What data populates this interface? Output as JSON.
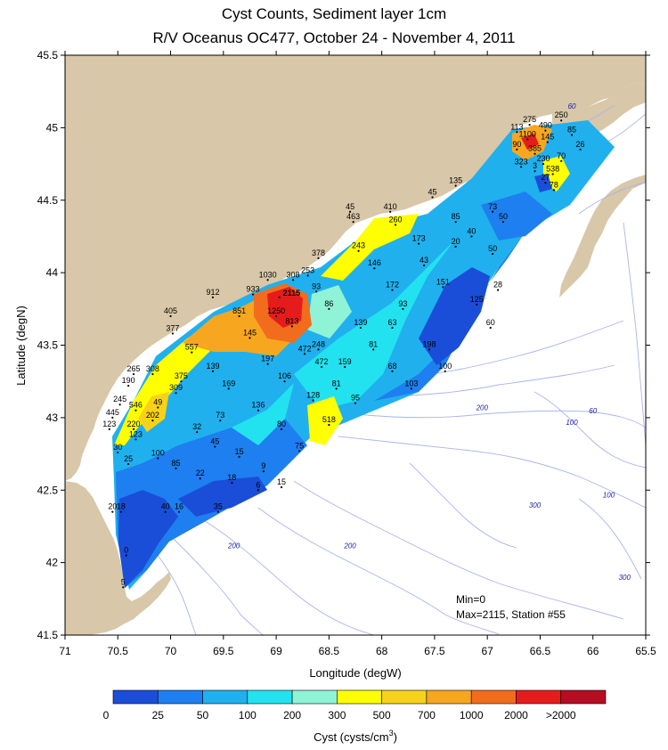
{
  "title": {
    "line1": "Cyst Counts, Sediment layer 1cm",
    "line2": "R/V Oceanus OC477, October 24 - November 4, 2011"
  },
  "axes": {
    "xlabel": "Longitude (degW)",
    "ylabel": "Latitude (degN)",
    "x_ticks": [
      "71",
      "70.5",
      "70",
      "69.5",
      "69",
      "68.5",
      "68",
      "67.5",
      "67",
      "66.5",
      "66",
      "65.5"
    ],
    "y_ticks": [
      "45.5",
      "45",
      "44.5",
      "44",
      "43.5",
      "43",
      "42.5",
      "42",
      "41.5"
    ],
    "xlim": [
      71,
      65.5
    ],
    "ylim": [
      41.5,
      45.5
    ]
  },
  "colors": {
    "land": "#d8c7a8",
    "sea": "#ffffff",
    "bathymetry": "#a9b4ec",
    "bins": [
      "#1a4ed8",
      "#1e7ff0",
      "#20b0ee",
      "#22e2f0",
      "#8ff3d6",
      "#ffff00",
      "#f8d21a",
      "#f7a61f",
      "#f26c1e",
      "#e51c1c",
      "#b50d22"
    ]
  },
  "colorbar": {
    "label": "Cyst (cysts/cm",
    "label_sup": "3",
    "label_close": ")",
    "ticks": [
      "0",
      "25",
      "50",
      "100",
      "200",
      "300",
      "500",
      "700",
      "1000",
      "2000",
      ">2000"
    ]
  },
  "annotations": {
    "min": "Min=0",
    "max": "Max=2115, Station #55",
    "peak": "2115"
  },
  "isobaths": [
    {
      "text": "60",
      "lon": 66.2,
      "lat": 45.13
    },
    {
      "text": "60",
      "lon": 66.0,
      "lat": 43.03
    },
    {
      "text": "100",
      "lon": 66.2,
      "lat": 42.95
    },
    {
      "text": "200",
      "lon": 67.05,
      "lat": 43.05
    },
    {
      "text": "100",
      "lon": 65.85,
      "lat": 42.45
    },
    {
      "text": "300",
      "lon": 66.55,
      "lat": 42.38
    },
    {
      "text": "200",
      "lon": 68.3,
      "lat": 42.1
    },
    {
      "text": "200",
      "lon": 69.4,
      "lat": 42.1
    },
    {
      "text": "300",
      "lon": 65.7,
      "lat": 41.88
    }
  ],
  "chart_data": {
    "type": "map",
    "title": "Cyst Counts, Sediment layer 1cm",
    "subtitle": "R/V Oceanus OC477, October 24 - November 4, 2011",
    "xlabel": "Longitude (degW)",
    "ylabel": "Latitude (degN)",
    "min": 0,
    "max": 2115,
    "max_station": 55,
    "stations": [
      {
        "lon": 66.45,
        "lat": 44.98,
        "value": 490
      },
      {
        "lon": 66.3,
        "lat": 45.05,
        "value": 250
      },
      {
        "lon": 66.6,
        "lat": 45.02,
        "value": 275
      },
      {
        "lon": 66.72,
        "lat": 44.97,
        "value": 113
      },
      {
        "lon": 66.62,
        "lat": 44.92,
        "value": 1100
      },
      {
        "lon": 66.72,
        "lat": 44.85,
        "value": 90
      },
      {
        "lon": 66.43,
        "lat": 44.9,
        "value": 145
      },
      {
        "lon": 66.2,
        "lat": 44.95,
        "value": 85
      },
      {
        "lon": 66.12,
        "lat": 44.85,
        "value": 26
      },
      {
        "lon": 66.55,
        "lat": 44.82,
        "value": 385
      },
      {
        "lon": 66.3,
        "lat": 44.77,
        "value": 70
      },
      {
        "lon": 66.47,
        "lat": 44.75,
        "value": 230
      },
      {
        "lon": 66.68,
        "lat": 44.73,
        "value": 323
      },
      {
        "lon": 66.55,
        "lat": 44.7,
        "value": 3
      },
      {
        "lon": 66.38,
        "lat": 44.68,
        "value": 538
      },
      {
        "lon": 66.45,
        "lat": 44.62,
        "value": 27
      },
      {
        "lon": 66.37,
        "lat": 44.57,
        "value": 78
      },
      {
        "lon": 67.3,
        "lat": 44.6,
        "value": 135
      },
      {
        "lon": 67.52,
        "lat": 44.52,
        "value": 45
      },
      {
        "lon": 67.92,
        "lat": 44.42,
        "value": 410
      },
      {
        "lon": 68.3,
        "lat": 44.42,
        "value": 45
      },
      {
        "lon": 68.27,
        "lat": 44.35,
        "value": 463
      },
      {
        "lon": 67.87,
        "lat": 44.33,
        "value": 260
      },
      {
        "lon": 66.95,
        "lat": 44.42,
        "value": 73
      },
      {
        "lon": 67.3,
        "lat": 44.35,
        "value": 85
      },
      {
        "lon": 66.85,
        "lat": 44.35,
        "value": 50
      },
      {
        "lon": 67.15,
        "lat": 44.25,
        "value": 40
      },
      {
        "lon": 67.65,
        "lat": 44.2,
        "value": 173
      },
      {
        "lon": 67.3,
        "lat": 44.18,
        "value": 20
      },
      {
        "lon": 68.22,
        "lat": 44.15,
        "value": 243
      },
      {
        "lon": 66.95,
        "lat": 44.13,
        "value": 50
      },
      {
        "lon": 68.6,
        "lat": 44.1,
        "value": 378
      },
      {
        "lon": 67.6,
        "lat": 44.05,
        "value": 43
      },
      {
        "lon": 68.07,
        "lat": 44.03,
        "value": 146
      },
      {
        "lon": 68.7,
        "lat": 43.98,
        "value": 253
      },
      {
        "lon": 69.08,
        "lat": 43.95,
        "value": 1030
      },
      {
        "lon": 68.84,
        "lat": 43.95,
        "value": 308
      },
      {
        "lon": 67.42,
        "lat": 43.9,
        "value": 151
      },
      {
        "lon": 66.9,
        "lat": 43.88,
        "value": 28
      },
      {
        "lon": 68.62,
        "lat": 43.87,
        "value": 93
      },
      {
        "lon": 67.9,
        "lat": 43.88,
        "value": 172
      },
      {
        "lon": 69.22,
        "lat": 43.85,
        "value": 933
      },
      {
        "lon": 69.6,
        "lat": 43.83,
        "value": 912
      },
      {
        "lon": 68.97,
        "lat": 43.83,
        "value": 2115
      },
      {
        "lon": 67.1,
        "lat": 43.78,
        "value": 125
      },
      {
        "lon": 68.5,
        "lat": 43.75,
        "value": 86
      },
      {
        "lon": 67.8,
        "lat": 43.75,
        "value": 93
      },
      {
        "lon": 69.35,
        "lat": 43.7,
        "value": 851
      },
      {
        "lon": 69.0,
        "lat": 43.7,
        "value": 1250
      },
      {
        "lon": 70.0,
        "lat": 43.7,
        "value": 405
      },
      {
        "lon": 68.85,
        "lat": 43.63,
        "value": 813
      },
      {
        "lon": 68.2,
        "lat": 43.62,
        "value": 139
      },
      {
        "lon": 67.9,
        "lat": 43.62,
        "value": 63
      },
      {
        "lon": 66.97,
        "lat": 43.62,
        "value": 60
      },
      {
        "lon": 69.98,
        "lat": 43.58,
        "value": 377
      },
      {
        "lon": 69.25,
        "lat": 43.55,
        "value": 145
      },
      {
        "lon": 68.6,
        "lat": 43.47,
        "value": 248
      },
      {
        "lon": 68.08,
        "lat": 43.47,
        "value": 81
      },
      {
        "lon": 67.55,
        "lat": 43.47,
        "value": 198
      },
      {
        "lon": 69.8,
        "lat": 43.45,
        "value": 557
      },
      {
        "lon": 68.73,
        "lat": 43.44,
        "value": 472
      },
      {
        "lon": 69.08,
        "lat": 43.37,
        "value": 197
      },
      {
        "lon": 68.35,
        "lat": 43.35,
        "value": 159
      },
      {
        "lon": 68.57,
        "lat": 43.35,
        "value": 472
      },
      {
        "lon": 67.9,
        "lat": 43.32,
        "value": 68
      },
      {
        "lon": 67.4,
        "lat": 43.32,
        "value": 100
      },
      {
        "lon": 70.35,
        "lat": 43.3,
        "value": 265
      },
      {
        "lon": 70.17,
        "lat": 43.3,
        "value": 308
      },
      {
        "lon": 69.6,
        "lat": 43.32,
        "value": 139
      },
      {
        "lon": 68.92,
        "lat": 43.25,
        "value": 106
      },
      {
        "lon": 69.9,
        "lat": 43.25,
        "value": 375
      },
      {
        "lon": 70.4,
        "lat": 43.22,
        "value": 190
      },
      {
        "lon": 69.45,
        "lat": 43.2,
        "value": 169
      },
      {
        "lon": 68.43,
        "lat": 43.2,
        "value": 81
      },
      {
        "lon": 67.72,
        "lat": 43.2,
        "value": 103
      },
      {
        "lon": 69.95,
        "lat": 43.17,
        "value": 309
      },
      {
        "lon": 68.65,
        "lat": 43.12,
        "value": 128
      },
      {
        "lon": 68.25,
        "lat": 43.1,
        "value": 95
      },
      {
        "lon": 70.48,
        "lat": 43.09,
        "value": 245
      },
      {
        "lon": 70.12,
        "lat": 43.07,
        "value": 49
      },
      {
        "lon": 70.33,
        "lat": 43.05,
        "value": 546
      },
      {
        "lon": 69.17,
        "lat": 43.05,
        "value": 136
      },
      {
        "lon": 70.55,
        "lat": 43.0,
        "value": 445
      },
      {
        "lon": 70.17,
        "lat": 42.98,
        "value": 202
      },
      {
        "lon": 69.53,
        "lat": 42.98,
        "value": 73
      },
      {
        "lon": 68.5,
        "lat": 42.95,
        "value": 518
      },
      {
        "lon": 70.58,
        "lat": 42.92,
        "value": 123
      },
      {
        "lon": 70.35,
        "lat": 42.92,
        "value": 220
      },
      {
        "lon": 68.95,
        "lat": 42.92,
        "value": 80
      },
      {
        "lon": 69.75,
        "lat": 42.9,
        "value": 32
      },
      {
        "lon": 70.33,
        "lat": 42.85,
        "value": 123
      },
      {
        "lon": 69.58,
        "lat": 42.8,
        "value": 45
      },
      {
        "lon": 68.78,
        "lat": 42.77,
        "value": 75
      },
      {
        "lon": 70.5,
        "lat": 42.76,
        "value": 30
      },
      {
        "lon": 69.35,
        "lat": 42.73,
        "value": 15
      },
      {
        "lon": 70.12,
        "lat": 42.72,
        "value": 100
      },
      {
        "lon": 70.4,
        "lat": 42.68,
        "value": 25
      },
      {
        "lon": 69.95,
        "lat": 42.65,
        "value": 85
      },
      {
        "lon": 69.12,
        "lat": 42.63,
        "value": 9
      },
      {
        "lon": 69.72,
        "lat": 42.58,
        "value": 22
      },
      {
        "lon": 69.42,
        "lat": 42.55,
        "value": 18
      },
      {
        "lon": 68.95,
        "lat": 42.52,
        "value": 15
      },
      {
        "lon": 69.17,
        "lat": 42.5,
        "value": 6
      },
      {
        "lon": 70.47,
        "lat": 42.35,
        "value": 18
      },
      {
        "lon": 70.55,
        "lat": 42.35,
        "value": 20
      },
      {
        "lon": 70.05,
        "lat": 42.35,
        "value": 40
      },
      {
        "lon": 69.92,
        "lat": 42.35,
        "value": 16
      },
      {
        "lon": 69.55,
        "lat": 42.35,
        "value": 35
      },
      {
        "lon": 70.42,
        "lat": 42.05,
        "value": 0
      },
      {
        "lon": 70.45,
        "lat": 41.83,
        "value": 5
      }
    ]
  }
}
